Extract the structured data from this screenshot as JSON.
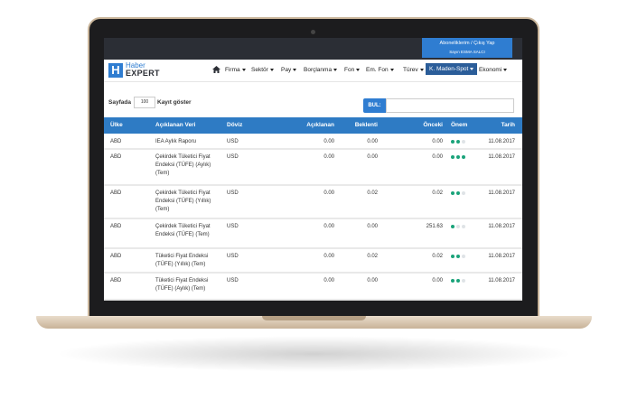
{
  "header": {
    "account_link": "Aboneliklerim / Çıkış Yap",
    "user": "Sayın ESMA SALCI"
  },
  "logo": {
    "letter": "H",
    "line1": "Haber",
    "line2": "EXPERT"
  },
  "nav": {
    "items": [
      "Firma",
      "Sektör",
      "Pay",
      "Borçlanma",
      "Fon",
      "Em. Fon",
      "Türev",
      "K. Maden-Spot",
      "Ekonomi"
    ],
    "active": 7
  },
  "controls": {
    "before": "Sayfada",
    "page_size": "100",
    "after": "Kayıt göster",
    "search_label": "BUL:"
  },
  "table": {
    "columns": [
      "Ülke",
      "Açıklanan Veri",
      "Döviz",
      "Açıklanan",
      "Beklenti",
      "Önceki",
      "Önem",
      "Tarih"
    ],
    "rows": [
      {
        "country": "ABD",
        "name": "IEA Aylık Raporu",
        "currency": "USD",
        "actual": "0.00",
        "forecast": "0.00",
        "previous": "0.00",
        "importance": 2,
        "date": "11.08.2017"
      },
      {
        "country": "ABD",
        "name": "Çekirdek Tüketici Fiyat Endeksi (TÜFE) (Aylık) (Tem)",
        "currency": "USD",
        "actual": "0.00",
        "forecast": "0.00",
        "previous": "0.00",
        "importance": 3,
        "date": "11.08.2017"
      },
      {
        "country": "ABD",
        "name": "Çekirdek Tüketici Fiyat Endeksi (TÜFE) (Yıllık) (Tem)",
        "currency": "USD",
        "actual": "0.00",
        "forecast": "0.02",
        "previous": "0.02",
        "importance": 2,
        "date": "11.08.2017"
      },
      {
        "country": "ABD",
        "name": "Çekirdek Tüketici Fiyat Endeksi (TÜFE) (Tem)",
        "currency": "USD",
        "actual": "0.00",
        "forecast": "0.00",
        "previous": "251.63",
        "importance": 1,
        "date": "11.08.2017"
      },
      {
        "country": "ABD",
        "name": "Tüketici Fiyat Endeksi (TÜFE) (Yıllık) (Tem)",
        "currency": "USD",
        "actual": "0.00",
        "forecast": "0.02",
        "previous": "0.02",
        "importance": 2,
        "date": "11.08.2017"
      },
      {
        "country": "ABD",
        "name": "Tüketici Fiyat Endeksi (TÜFE) (Aylık) (Tem)",
        "currency": "USD",
        "actual": "0.00",
        "forecast": "0.00",
        "previous": "0.00",
        "importance": 2,
        "date": "11.08.2017"
      }
    ]
  }
}
